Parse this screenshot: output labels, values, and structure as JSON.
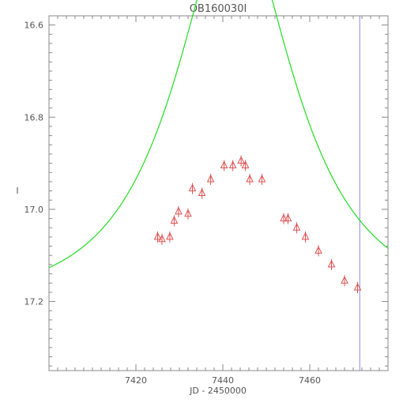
{
  "chart_data": {
    "type": "scatter",
    "title": "OB160030I",
    "xlabel": "JD - 2450000",
    "ylabel": "I",
    "xlim": [
      7400,
      7478
    ],
    "ylim": [
      17.35,
      16.58
    ],
    "y_inverted": true,
    "grid": false,
    "x_ticks": [
      7420,
      7440,
      7460
    ],
    "y_ticks": [
      16.6,
      16.8,
      17.0,
      17.2
    ],
    "x_tick_labels": [
      "7420",
      "7440",
      "7460"
    ],
    "y_tick_labels": [
      "16.6",
      "16.8",
      "17.0",
      "17.2"
    ],
    "vertical_line": {
      "x": 7471.5,
      "color": "#8a8ae6"
    },
    "series": [
      {
        "kind": "points",
        "marker": "triangle",
        "color": "#e05050",
        "x": [
          7425.0,
          7426.0,
          7427.8,
          7428.8,
          7429.8,
          7432.0,
          7433.0,
          7435.2,
          7437.2,
          7440.3,
          7442.3,
          7444.2,
          7445.2,
          7446.2,
          7449.0,
          7454.0,
          7455.0,
          7457.0,
          7459.0,
          7462.0,
          7465.0,
          7468.0,
          7471.0
        ],
        "y": [
          17.06,
          17.065,
          17.06,
          17.025,
          17.005,
          17.01,
          16.955,
          16.965,
          16.935,
          16.905,
          16.905,
          16.895,
          16.905,
          16.935,
          16.935,
          17.02,
          17.02,
          17.04,
          17.06,
          17.09,
          17.12,
          17.155,
          17.17
        ]
      },
      {
        "kind": "model",
        "color": "#22dd22",
        "curve": {
          "t0": 7442.7,
          "tE": 23.0,
          "u0": 0.5,
          "baseline": 17.198
        }
      }
    ]
  }
}
